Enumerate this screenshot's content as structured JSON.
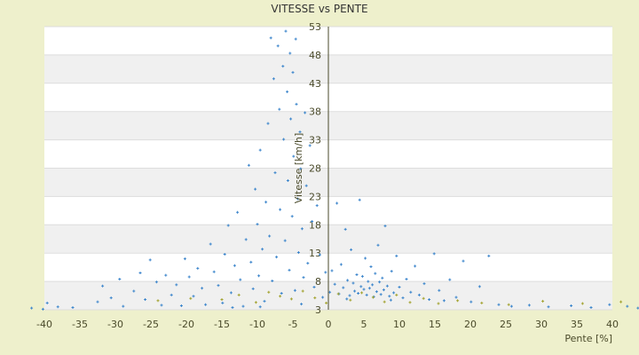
{
  "chart_data": {
    "type": "scatter",
    "title": "VITESSE vs PENTE",
    "xlabel": "Pente [%]",
    "ylabel": "Vitesse [km/h]",
    "xlim": [
      -40,
      40
    ],
    "ylim": [
      3,
      53
    ],
    "x_ticks": [
      -40,
      -35,
      -30,
      -25,
      -20,
      -15,
      -10,
      -5,
      0,
      5,
      10,
      15,
      20,
      25,
      30,
      35,
      40
    ],
    "y_ticks": [
      3,
      8,
      13,
      18,
      23,
      28,
      33,
      38,
      43,
      48,
      53
    ],
    "grid": "horizontal bands",
    "legend": "none",
    "series": [
      {
        "color": "#3d86cc",
        "marker": "plus",
        "points": [
          [
            -41.8,
            3.3
          ],
          [
            -40.2,
            3.1
          ],
          [
            -39.6,
            4.2
          ],
          [
            -38.1,
            3.5
          ],
          [
            -36.0,
            3.4
          ],
          [
            -32.5,
            4.4
          ],
          [
            -31.8,
            7.2
          ],
          [
            -30.6,
            5.1
          ],
          [
            -29.4,
            8.4
          ],
          [
            -28.9,
            3.6
          ],
          [
            -27.4,
            6.3
          ],
          [
            -26.5,
            9.5
          ],
          [
            -25.8,
            4.8
          ],
          [
            -25.1,
            11.8
          ],
          [
            -24.2,
            7.9
          ],
          [
            -23.5,
            3.8
          ],
          [
            -22.9,
            9.1
          ],
          [
            -22.1,
            5.6
          ],
          [
            -21.4,
            7.4
          ],
          [
            -20.7,
            3.7
          ],
          [
            -20.2,
            12.0
          ],
          [
            -19.6,
            8.8
          ],
          [
            -19.0,
            5.4
          ],
          [
            -18.4,
            10.3
          ],
          [
            -17.8,
            6.8
          ],
          [
            -17.3,
            3.9
          ],
          [
            -16.6,
            14.6
          ],
          [
            -16.1,
            9.7
          ],
          [
            -15.5,
            7.3
          ],
          [
            -14.9,
            4.2
          ],
          [
            -14.6,
            12.8
          ],
          [
            -14.1,
            17.9
          ],
          [
            -13.7,
            6.0
          ],
          [
            -13.2,
            10.8
          ],
          [
            -12.8,
            20.2
          ],
          [
            -12.4,
            8.3
          ],
          [
            -12.0,
            3.6
          ],
          [
            -11.6,
            15.4
          ],
          [
            -11.2,
            28.5
          ],
          [
            -10.9,
            11.4
          ],
          [
            -10.6,
            6.7
          ],
          [
            -10.3,
            24.3
          ],
          [
            -10.0,
            18.1
          ],
          [
            -9.8,
            9.0
          ],
          [
            -9.6,
            31.2
          ],
          [
            -9.3,
            13.7
          ],
          [
            -9.0,
            4.5
          ],
          [
            -8.8,
            22.0
          ],
          [
            -8.5,
            35.9
          ],
          [
            -8.3,
            16.0
          ],
          [
            -8.1,
            51.0
          ],
          [
            -7.9,
            8.1
          ],
          [
            -7.7,
            43.8
          ],
          [
            -7.5,
            27.2
          ],
          [
            -7.3,
            12.3
          ],
          [
            -7.1,
            49.6
          ],
          [
            -6.9,
            38.4
          ],
          [
            -6.8,
            20.7
          ],
          [
            -6.6,
            5.9
          ],
          [
            -6.4,
            46.0
          ],
          [
            -6.3,
            33.1
          ],
          [
            -6.1,
            15.2
          ],
          [
            -6.0,
            52.2
          ],
          [
            -5.8,
            41.5
          ],
          [
            -5.7,
            25.8
          ],
          [
            -5.5,
            10.0
          ],
          [
            -5.4,
            48.3
          ],
          [
            -5.3,
            36.7
          ],
          [
            -5.1,
            19.5
          ],
          [
            -5.0,
            44.9
          ],
          [
            -4.9,
            30.1
          ],
          [
            -4.7,
            6.4
          ],
          [
            -4.6,
            50.8
          ],
          [
            -4.5,
            39.3
          ],
          [
            -4.3,
            22.6
          ],
          [
            -4.2,
            13.1
          ],
          [
            -4.0,
            34.4
          ],
          [
            -3.9,
            27.9
          ],
          [
            -3.7,
            17.3
          ],
          [
            -3.5,
            8.7
          ],
          [
            -3.3,
            37.8
          ],
          [
            -3.1,
            24.9
          ],
          [
            -2.9,
            11.2
          ],
          [
            -2.6,
            32.0
          ],
          [
            -2.3,
            18.6
          ],
          [
            -2.0,
            7.0
          ],
          [
            -1.6,
            21.4
          ],
          [
            -1.2,
            12.7
          ],
          [
            -0.8,
            5.2
          ],
          [
            -0.4,
            9.6
          ],
          [
            0.2,
            6.1
          ],
          [
            0.5,
            9.9
          ],
          [
            0.9,
            7.5
          ],
          [
            1.2,
            21.8
          ],
          [
            1.5,
            5.8
          ],
          [
            1.8,
            11.0
          ],
          [
            2.1,
            6.9
          ],
          [
            2.4,
            17.2
          ],
          [
            2.7,
            8.2
          ],
          [
            3.0,
            5.5
          ],
          [
            3.2,
            13.6
          ],
          [
            3.5,
            7.7
          ],
          [
            3.7,
            6.3
          ],
          [
            4.0,
            9.2
          ],
          [
            4.2,
            5.9
          ],
          [
            4.4,
            22.4
          ],
          [
            4.6,
            7.1
          ],
          [
            4.8,
            8.9
          ],
          [
            5.0,
            6.6
          ],
          [
            5.2,
            12.1
          ],
          [
            5.4,
            5.6
          ],
          [
            5.6,
            8.0
          ],
          [
            5.8,
            6.8
          ],
          [
            6.0,
            10.6
          ],
          [
            6.2,
            7.4
          ],
          [
            6.4,
            5.3
          ],
          [
            6.6,
            9.4
          ],
          [
            6.8,
            6.2
          ],
          [
            7.0,
            14.4
          ],
          [
            7.2,
            7.9
          ],
          [
            7.4,
            5.7
          ],
          [
            7.6,
            8.6
          ],
          [
            7.8,
            6.5
          ],
          [
            8.0,
            17.8
          ],
          [
            8.3,
            7.2
          ],
          [
            8.6,
            5.4
          ],
          [
            8.9,
            9.8
          ],
          [
            9.2,
            6.0
          ],
          [
            9.6,
            12.5
          ],
          [
            10.0,
            7.0
          ],
          [
            10.5,
            5.1
          ],
          [
            11.0,
            8.4
          ],
          [
            11.6,
            6.1
          ],
          [
            12.2,
            10.7
          ],
          [
            12.8,
            5.6
          ],
          [
            13.5,
            7.6
          ],
          [
            14.2,
            4.8
          ],
          [
            14.9,
            12.9
          ],
          [
            15.6,
            6.4
          ],
          [
            16.3,
            4.6
          ],
          [
            17.1,
            8.3
          ],
          [
            18.0,
            5.2
          ],
          [
            19.0,
            11.6
          ],
          [
            20.1,
            4.4
          ],
          [
            21.3,
            7.1
          ],
          [
            22.6,
            12.5
          ],
          [
            24.0,
            3.9
          ],
          [
            25.8,
            3.6
          ],
          [
            28.3,
            3.8
          ],
          [
            31.0,
            3.5
          ],
          [
            34.2,
            3.7
          ],
          [
            37.0,
            3.4
          ],
          [
            39.6,
            3.9
          ],
          [
            42.1,
            3.6
          ],
          [
            43.6,
            3.3
          ],
          [
            -13.5,
            3.4
          ],
          [
            -9.6,
            3.5
          ],
          [
            -3.8,
            4.0
          ],
          [
            2.6,
            4.9
          ],
          [
            8.8,
            4.7
          ]
        ]
      },
      {
        "color": "#a3a330",
        "marker": "plus",
        "points": [
          [
            -24.0,
            4.6
          ],
          [
            -19.4,
            5.0
          ],
          [
            -15.0,
            4.8
          ],
          [
            -12.6,
            5.6
          ],
          [
            -10.2,
            4.3
          ],
          [
            -8.4,
            6.1
          ],
          [
            -6.8,
            5.4
          ],
          [
            -5.2,
            4.9
          ],
          [
            -3.6,
            6.3
          ],
          [
            -1.9,
            5.1
          ],
          [
            -0.3,
            4.2
          ],
          [
            1.4,
            5.8
          ],
          [
            3.1,
            4.7
          ],
          [
            4.7,
            6.0
          ],
          [
            6.3,
            5.2
          ],
          [
            7.9,
            4.4
          ],
          [
            9.6,
            5.6
          ],
          [
            11.5,
            4.3
          ],
          [
            13.4,
            5.0
          ],
          [
            15.5,
            4.1
          ],
          [
            18.2,
            4.6
          ],
          [
            21.6,
            4.2
          ],
          [
            25.4,
            3.9
          ],
          [
            30.2,
            4.5
          ],
          [
            35.8,
            4.1
          ],
          [
            41.2,
            4.4
          ]
        ]
      }
    ]
  }
}
